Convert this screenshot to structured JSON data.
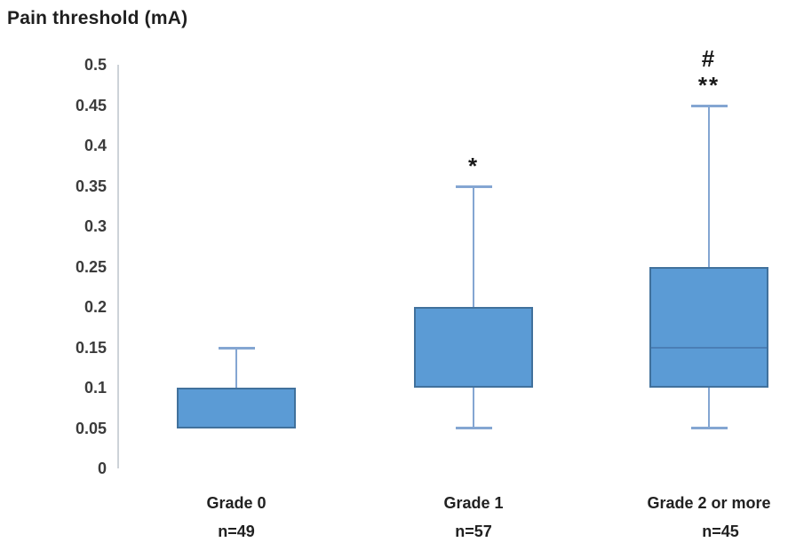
{
  "title": "Pain threshold (mA)",
  "chart_data": {
    "type": "box",
    "title": "Pain threshold (mA)",
    "ylabel": "Pain threshold (mA)",
    "xlabel": "",
    "ylim": [
      0,
      0.5
    ],
    "ytick_step": 0.05,
    "yticks": [
      0.5,
      0.45,
      0.4,
      0.35,
      0.3,
      0.25,
      0.2,
      0.15,
      0.1,
      0.05,
      0
    ],
    "ytick_labels": [
      "0.5",
      "0.45",
      "0.4",
      "0.35",
      "0.3",
      "0.25",
      "0.2",
      "0.15",
      "0.1",
      "0.05",
      "0"
    ],
    "grid": false,
    "legend": false,
    "groups": [
      {
        "label": "Grade 0",
        "n_label": "n=49",
        "n": 49,
        "whisker_low": null,
        "q1": 0.05,
        "median": null,
        "q3": 0.1,
        "whisker_high": 0.15,
        "annotations": []
      },
      {
        "label": "Grade 1",
        "n_label": "n=57",
        "n": 57,
        "whisker_low": 0.05,
        "q1": 0.1,
        "median": null,
        "q3": 0.2,
        "whisker_high": 0.35,
        "annotations": [
          "*"
        ]
      },
      {
        "label": "Grade 2 or more",
        "n_label": "n=45",
        "n": 45,
        "whisker_low": 0.05,
        "q1": 0.1,
        "median": 0.15,
        "q3": 0.25,
        "whisker_high": 0.45,
        "annotations": [
          "#",
          "**"
        ]
      }
    ],
    "colors": {
      "box_fill": "#5B9BD5",
      "box_border": "#41719C",
      "whisker": "#84A6D2",
      "median_line": "#4A7EB5",
      "axis_line": "#CDD2D8",
      "text": "#212121"
    }
  }
}
